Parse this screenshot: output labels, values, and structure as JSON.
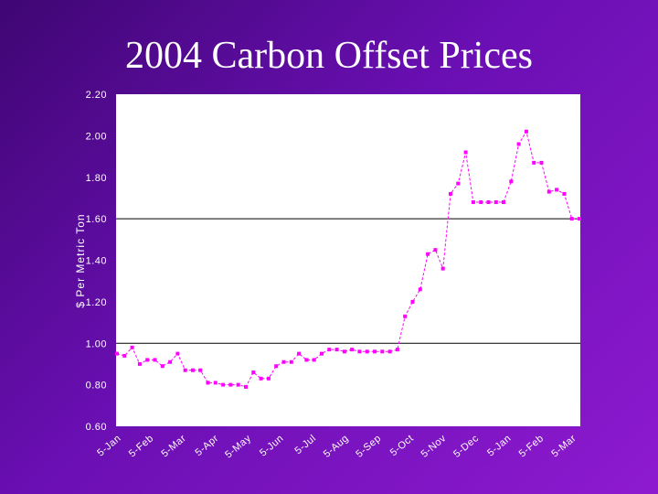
{
  "slide": {
    "title": "2004 Carbon Offset Prices"
  },
  "chart_data": {
    "type": "line",
    "title": "2004 Carbon Offset Prices",
    "ylabel": "$ Per Metric Ton",
    "xlabel": "",
    "ylim": [
      0.6,
      2.2
    ],
    "y_ticks": [
      "2.20",
      "2.00",
      "1.80",
      "1.60",
      "1.40",
      "1.20",
      "1.00",
      "0.80",
      "0.60"
    ],
    "y_tick_values": [
      2.2,
      2.0,
      1.8,
      1.6,
      1.4,
      1.2,
      1.0,
      0.8,
      0.6
    ],
    "reference_lines": [
      1.6,
      1.0
    ],
    "x_tick_labels": [
      "5-Jan",
      "5-Feb",
      "5-Mar",
      "5-Apr",
      "5-May",
      "5-Jun",
      "5-Jul",
      "5-Aug",
      "5-Sep",
      "5-Oct",
      "5-Nov",
      "5-Dec",
      "5-Jan",
      "5-Feb",
      "5-Mar"
    ],
    "series": [
      {
        "color": "#ff00ff",
        "values": [
          0.95,
          0.94,
          0.98,
          0.9,
          0.92,
          0.92,
          0.89,
          0.91,
          0.95,
          0.87,
          0.87,
          0.87,
          0.81,
          0.81,
          0.8,
          0.8,
          0.8,
          0.79,
          0.86,
          0.83,
          0.83,
          0.89,
          0.91,
          0.91,
          0.95,
          0.92,
          0.92,
          0.95,
          0.97,
          0.97,
          0.96,
          0.97,
          0.96,
          0.96,
          0.96,
          0.96,
          0.96,
          0.97,
          1.13,
          1.2,
          1.26,
          1.43,
          1.45,
          1.36,
          1.72,
          1.77,
          1.92,
          1.68,
          1.68,
          1.68,
          1.68,
          1.68,
          1.78,
          1.96,
          2.02,
          1.87,
          1.87,
          1.73,
          1.74,
          1.72,
          1.6,
          1.6
        ]
      }
    ],
    "grid": false,
    "legend": "none"
  }
}
